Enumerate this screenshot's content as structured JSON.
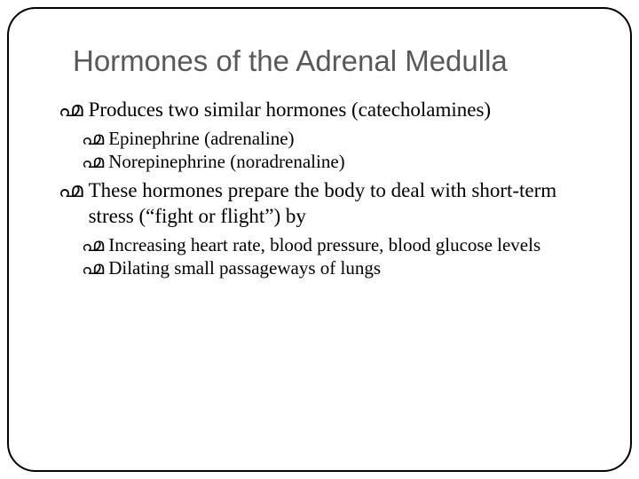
{
  "slide": {
    "title": "Hormones of the Adrenal Medulla",
    "title_color": "#595959",
    "title_fontsize": 33,
    "title_font": "Arial",
    "body_font": "Georgia",
    "body_color": "#000000",
    "frame_border_color": "#000000",
    "frame_border_width": 2,
    "frame_border_radius": 32,
    "background_color": "#ffffff",
    "bullet_glyph": "൶",
    "items": [
      {
        "text": "Produces two similar hormones (catecholamines)",
        "fontsize": 23,
        "children": [
          {
            "text": "Epinephrine (adrenaline)",
            "fontsize": 21
          },
          {
            "text": "Norepinephrine (noradrenaline)",
            "fontsize": 21
          }
        ]
      },
      {
        "text": "These hormones prepare the body to deal with short-term stress (“fight or flight”) by",
        "fontsize": 23,
        "children": [
          {
            "text": "Increasing heart rate, blood pressure, blood glucose levels",
            "fontsize": 21
          },
          {
            "text": "Dilating small passageways of lungs",
            "fontsize": 21
          }
        ]
      }
    ]
  }
}
